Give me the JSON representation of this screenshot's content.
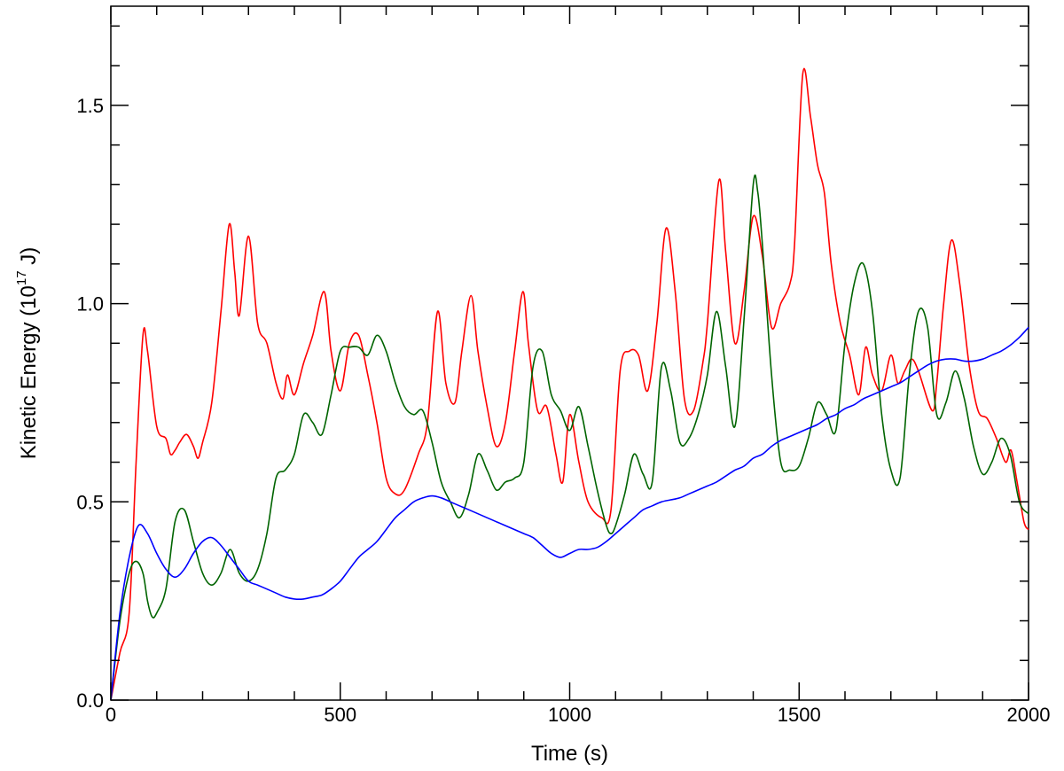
{
  "chart_data": {
    "type": "line",
    "xlabel": "Time (s)",
    "ylabel": {
      "prefix": "Kinetic Energy (10",
      "exponent": "17",
      "suffix": " J)"
    },
    "xlim": [
      0,
      2000
    ],
    "ylim": [
      0,
      1.75
    ],
    "x_ticks": [
      0,
      500,
      1000,
      1500,
      2000
    ],
    "y_ticks": [
      0.0,
      0.5,
      1.0,
      1.5
    ],
    "x_tick_labels": [
      "0",
      "500",
      "1000",
      "1500",
      "2000"
    ],
    "y_tick_labels": [
      "0.0",
      "0.5",
      "1.0",
      "1.5"
    ],
    "x_minor_step": 100,
    "y_minor_step": 0.1,
    "grid": false,
    "series": [
      {
        "color": "#ff0000",
        "x": [
          0,
          20,
          40,
          55,
          70,
          80,
          100,
          120,
          130,
          140,
          150,
          165,
          180,
          190,
          200,
          220,
          240,
          258,
          270,
          280,
          300,
          320,
          340,
          360,
          375,
          385,
          400,
          420,
          440,
          465,
          480,
          500,
          520,
          540,
          560,
          580,
          600,
          620,
          640,
          670,
          690,
          712,
          730,
          750,
          765,
          785,
          800,
          820,
          840,
          860,
          880,
          898,
          910,
          930,
          950,
          970,
          985,
          1000,
          1020,
          1040,
          1070,
          1090,
          1110,
          1130,
          1150,
          1170,
          1190,
          1210,
          1230,
          1250,
          1270,
          1290,
          1300,
          1325,
          1340,
          1360,
          1380,
          1400,
          1420,
          1440,
          1460,
          1480,
          1490,
          1508,
          1525,
          1540,
          1555,
          1570,
          1590,
          1610,
          1630,
          1645,
          1660,
          1680,
          1700,
          1715,
          1730,
          1745,
          1760,
          1790,
          1800,
          1815,
          1832,
          1850,
          1870,
          1890,
          1910,
          1930,
          1950,
          1962,
          1975,
          1990,
          2000
        ],
        "y": [
          0.0,
          0.12,
          0.22,
          0.6,
          0.92,
          0.88,
          0.69,
          0.66,
          0.62,
          0.63,
          0.65,
          0.67,
          0.64,
          0.61,
          0.65,
          0.75,
          0.98,
          1.2,
          1.08,
          0.97,
          1.17,
          0.95,
          0.9,
          0.8,
          0.76,
          0.82,
          0.77,
          0.85,
          0.92,
          1.03,
          0.88,
          0.78,
          0.9,
          0.92,
          0.82,
          0.7,
          0.56,
          0.52,
          0.53,
          0.62,
          0.7,
          0.98,
          0.8,
          0.75,
          0.88,
          1.02,
          0.88,
          0.74,
          0.64,
          0.7,
          0.88,
          1.03,
          0.9,
          0.73,
          0.74,
          0.62,
          0.55,
          0.72,
          0.6,
          0.5,
          0.46,
          0.48,
          0.83,
          0.88,
          0.87,
          0.78,
          0.95,
          1.19,
          1.03,
          0.76,
          0.73,
          0.85,
          0.95,
          1.31,
          1.13,
          0.9,
          1.03,
          1.22,
          1.12,
          0.94,
          1.0,
          1.05,
          1.15,
          1.58,
          1.47,
          1.35,
          1.28,
          1.1,
          0.95,
          0.87,
          0.77,
          0.89,
          0.82,
          0.78,
          0.87,
          0.8,
          0.83,
          0.86,
          0.83,
          0.73,
          0.8,
          1.0,
          1.16,
          1.05,
          0.85,
          0.73,
          0.71,
          0.66,
          0.6,
          0.63,
          0.55,
          0.45,
          0.43
        ]
      },
      {
        "color": "#006400",
        "x": [
          0,
          20,
          40,
          55,
          70,
          80,
          90,
          100,
          120,
          140,
          160,
          180,
          200,
          220,
          240,
          260,
          280,
          300,
          320,
          340,
          360,
          380,
          400,
          420,
          440,
          460,
          480,
          500,
          520,
          540,
          560,
          580,
          600,
          620,
          640,
          660,
          680,
          700,
          720,
          740,
          760,
          780,
          800,
          820,
          840,
          860,
          880,
          900,
          920,
          940,
          960,
          980,
          1000,
          1020,
          1040,
          1060,
          1080,
          1090,
          1100,
          1120,
          1140,
          1160,
          1180,
          1200,
          1220,
          1240,
          1260,
          1280,
          1300,
          1320,
          1340,
          1360,
          1380,
          1400,
          1410,
          1420,
          1440,
          1460,
          1480,
          1500,
          1520,
          1540,
          1560,
          1580,
          1600,
          1620,
          1640,
          1660,
          1680,
          1700,
          1720,
          1740,
          1760,
          1780,
          1800,
          1820,
          1840,
          1860,
          1880,
          1900,
          1920,
          1940,
          1960,
          1980,
          2000
        ],
        "y": [
          0.0,
          0.2,
          0.32,
          0.35,
          0.32,
          0.25,
          0.21,
          0.22,
          0.28,
          0.45,
          0.48,
          0.4,
          0.32,
          0.29,
          0.32,
          0.38,
          0.32,
          0.3,
          0.33,
          0.42,
          0.56,
          0.58,
          0.62,
          0.72,
          0.7,
          0.67,
          0.77,
          0.88,
          0.89,
          0.89,
          0.87,
          0.92,
          0.88,
          0.8,
          0.74,
          0.72,
          0.73,
          0.65,
          0.55,
          0.5,
          0.46,
          0.52,
          0.62,
          0.58,
          0.53,
          0.55,
          0.56,
          0.6,
          0.84,
          0.88,
          0.77,
          0.73,
          0.68,
          0.74,
          0.64,
          0.53,
          0.44,
          0.42,
          0.44,
          0.52,
          0.62,
          0.57,
          0.55,
          0.84,
          0.78,
          0.65,
          0.66,
          0.72,
          0.82,
          0.98,
          0.84,
          0.69,
          0.96,
          1.3,
          1.28,
          1.15,
          0.82,
          0.6,
          0.58,
          0.59,
          0.66,
          0.75,
          0.72,
          0.68,
          0.9,
          1.05,
          1.1,
          0.98,
          0.72,
          0.58,
          0.56,
          0.82,
          0.98,
          0.94,
          0.72,
          0.75,
          0.83,
          0.76,
          0.64,
          0.57,
          0.6,
          0.66,
          0.62,
          0.5,
          0.47
        ]
      },
      {
        "color": "#0000ff",
        "x": [
          0,
          20,
          40,
          60,
          80,
          100,
          120,
          140,
          160,
          180,
          200,
          220,
          240,
          260,
          280,
          300,
          320,
          340,
          360,
          380,
          400,
          420,
          440,
          460,
          480,
          500,
          520,
          540,
          560,
          580,
          600,
          620,
          640,
          660,
          680,
          700,
          720,
          740,
          760,
          780,
          800,
          820,
          840,
          860,
          880,
          900,
          920,
          940,
          960,
          980,
          1000,
          1020,
          1040,
          1060,
          1080,
          1100,
          1120,
          1140,
          1160,
          1180,
          1200,
          1220,
          1240,
          1260,
          1280,
          1300,
          1320,
          1340,
          1360,
          1380,
          1400,
          1420,
          1440,
          1460,
          1480,
          1500,
          1520,
          1540,
          1560,
          1580,
          1600,
          1620,
          1640,
          1660,
          1680,
          1700,
          1720,
          1740,
          1760,
          1780,
          1800,
          1820,
          1840,
          1860,
          1880,
          1900,
          1920,
          1940,
          1960,
          1980,
          2000
        ],
        "y": [
          0.0,
          0.22,
          0.36,
          0.44,
          0.42,
          0.37,
          0.33,
          0.31,
          0.33,
          0.37,
          0.4,
          0.41,
          0.39,
          0.36,
          0.33,
          0.3,
          0.29,
          0.28,
          0.27,
          0.26,
          0.255,
          0.255,
          0.26,
          0.265,
          0.28,
          0.3,
          0.33,
          0.36,
          0.38,
          0.4,
          0.43,
          0.46,
          0.48,
          0.5,
          0.51,
          0.515,
          0.51,
          0.5,
          0.49,
          0.48,
          0.47,
          0.46,
          0.45,
          0.44,
          0.43,
          0.42,
          0.41,
          0.39,
          0.37,
          0.36,
          0.37,
          0.38,
          0.38,
          0.385,
          0.4,
          0.42,
          0.44,
          0.46,
          0.48,
          0.49,
          0.5,
          0.505,
          0.51,
          0.52,
          0.53,
          0.54,
          0.55,
          0.565,
          0.58,
          0.59,
          0.61,
          0.62,
          0.64,
          0.655,
          0.665,
          0.675,
          0.685,
          0.695,
          0.71,
          0.72,
          0.735,
          0.745,
          0.76,
          0.77,
          0.78,
          0.79,
          0.8,
          0.815,
          0.83,
          0.845,
          0.855,
          0.86,
          0.86,
          0.855,
          0.855,
          0.86,
          0.87,
          0.88,
          0.895,
          0.915,
          0.94
        ]
      }
    ]
  }
}
